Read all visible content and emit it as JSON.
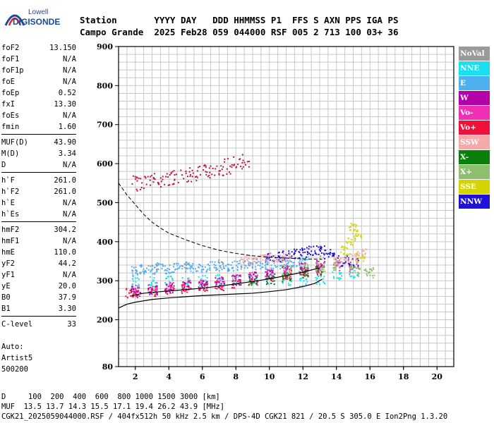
{
  "logo": {
    "line1": "Lowell",
    "line2": "DIGISONDE"
  },
  "header": {
    "row1": "Station       YYYY DAY   DDD HHMMSS P1  FFS S AXN PPS IGA PS",
    "row2": "Campo Grande  2025 Feb28 059 044000 RSF 005 2 713 100 03+ 36"
  },
  "params": {
    "group1": [
      {
        "label": "foF2",
        "value": "13.150"
      },
      {
        "label": "foF1",
        "value": "N/A"
      },
      {
        "label": "foF1p",
        "value": "N/A"
      },
      {
        "label": "foE",
        "value": "N/A"
      },
      {
        "label": "foEp",
        "value": "0.52"
      },
      {
        "label": "fxI",
        "value": "13.30"
      },
      {
        "label": "foEs",
        "value": "N/A"
      },
      {
        "label": "fmin",
        "value": "1.60"
      }
    ],
    "group2": [
      {
        "label": "MUF(D)",
        "value": "43.90"
      },
      {
        "label": "M(D)",
        "value": "3.34"
      },
      {
        "label": "D",
        "value": "N/A"
      }
    ],
    "group3": [
      {
        "label": "h`F",
        "value": "261.0"
      },
      {
        "label": "h`F2",
        "value": "261.0"
      },
      {
        "label": "h`E",
        "value": "N/A"
      },
      {
        "label": "h`Es",
        "value": "N/A"
      }
    ],
    "group4": [
      {
        "label": "hmF2",
        "value": "304.2"
      },
      {
        "label": "hmF1",
        "value": "N/A"
      },
      {
        "label": "hmE",
        "value": "110.0"
      },
      {
        "label": "yF2",
        "value": "44.2"
      },
      {
        "label": "yF1",
        "value": "N/A"
      },
      {
        "label": "yE",
        "value": "20.0"
      },
      {
        "label": "B0",
        "value": "37.9"
      },
      {
        "label": "B1",
        "value": "3.30"
      }
    ],
    "group5": [
      {
        "label": "C-level",
        "value": "33"
      }
    ]
  },
  "auto": {
    "line1": "Auto:",
    "line2": "Artist5",
    "line3": "500200"
  },
  "legend": [
    {
      "label": "NoVal",
      "color": "#9a9a9a"
    },
    {
      "label": "NNE",
      "color": "#19e0f0"
    },
    {
      "label": "E",
      "color": "#4fb0f0"
    },
    {
      "label": "W",
      "color": "#b400a8"
    },
    {
      "label": "Vo-",
      "color": "#f030b4"
    },
    {
      "label": "Vo+",
      "color": "#f0103c"
    },
    {
      "label": "SSW",
      "color": "#f4aaaa"
    },
    {
      "label": "X-",
      "color": "#0a800a"
    },
    {
      "label": "X+",
      "color": "#8cc06c"
    },
    {
      "label": "SSE",
      "color": "#d4d400"
    },
    {
      "label": "NNW",
      "color": "#2010d8"
    }
  ],
  "footer": {
    "line1": "D     100  200  400  600  800 1000 1500 3000 [km]",
    "line2": "MUF  13.5 13.7 14.3 15.5 17.1 19.4 26.2 43.9 [MHz]",
    "line3": "CGK21_2025059044000.RSF / 404fx512h 50 kHz 2.5 km / DPS-4D CGK21 821 / 20.5 S 305.0 E Ion2Png 1.3.20"
  },
  "chart_data": {
    "type": "scatter",
    "xlim": [
      1,
      21
    ],
    "ylim": [
      80,
      900
    ],
    "xticks": [
      2,
      4,
      6,
      8,
      10,
      12,
      14,
      16,
      18,
      20
    ],
    "yticks": [
      80,
      200,
      300,
      400,
      500,
      600,
      700,
      800,
      900
    ],
    "grid": true,
    "legend_placement": "right",
    "series": [
      {
        "name": "E",
        "color": "#4fb0f0",
        "x": [
          2.0,
          2.5,
          3.0,
          3.5,
          4.0,
          4.5,
          5.0,
          5.5,
          6.0,
          6.5,
          7.0,
          7.5,
          8.0,
          8.5,
          9.0,
          9.5,
          10.0,
          10.5,
          11.0,
          11.5,
          12.0
        ],
        "y": [
          328,
          330,
          332,
          334,
          333,
          335,
          336,
          335,
          337,
          338,
          338,
          339,
          340,
          341,
          342,
          343,
          344,
          345,
          346,
          348,
          350
        ]
      },
      {
        "name": "NNE",
        "color": "#19e0f0",
        "x": [
          2.0,
          3.0,
          4.0,
          5.0,
          6.0,
          7.0,
          8.0,
          9.0,
          10.0,
          11.0,
          12.0,
          13.0,
          14.0,
          15.0
        ],
        "y": [
          298,
          300,
          301,
          302,
          303,
          304,
          305,
          306,
          306,
          303,
          300,
          305,
          315,
          322
        ]
      },
      {
        "name": "Vo+",
        "color": "#f0103c",
        "x": [
          1.6,
          2.0,
          3.0,
          4.0,
          5.0,
          6.0,
          7.0,
          8.0,
          9.0,
          10.0,
          11.0,
          12.0,
          13.0
        ],
        "y": [
          270,
          272,
          275,
          278,
          282,
          286,
          290,
          296,
          304,
          310,
          316,
          322,
          330
        ]
      },
      {
        "name": "Vo-",
        "color": "#f030b4",
        "x": [
          2.0,
          3.0,
          4.0,
          5.0,
          6.0,
          7.0,
          8.0,
          9.0,
          10.0,
          11.0,
          12.0,
          13.0,
          14.0,
          15.0
        ],
        "y": [
          282,
          284,
          287,
          291,
          295,
          300,
          305,
          311,
          318,
          324,
          330,
          336,
          340,
          338
        ]
      },
      {
        "name": "W",
        "color": "#b400a8",
        "x": [
          2.0,
          3.0,
          4.0,
          5.0,
          6.0,
          7.0,
          8.0,
          9.0,
          10.0,
          11.0,
          12.0,
          13.0
        ],
        "y": [
          276,
          279,
          283,
          287,
          292,
          297,
          303,
          310,
          318,
          326,
          334,
          342
        ]
      },
      {
        "name": "NNW",
        "color": "#2010d8",
        "x": [
          10.0,
          10.5,
          11.0,
          11.5,
          12.0,
          12.5,
          13.0,
          13.5,
          14.0,
          14.5,
          15.0
        ],
        "y": [
          360,
          362,
          366,
          370,
          374,
          378,
          380,
          370,
          360,
          352,
          346
        ]
      },
      {
        "name": "SSW",
        "color": "#f4aaaa",
        "x": [
          8.5,
          9.0,
          9.5,
          10.0,
          10.5,
          11.0,
          14.0,
          14.5,
          15.0,
          15.5
        ],
        "y": [
          355,
          356,
          358,
          360,
          362,
          364,
          350,
          355,
          360,
          370
        ]
      },
      {
        "name": "SSE",
        "color": "#d4d400",
        "x": [
          14.5,
          14.8,
          15.0,
          15.2,
          15.4
        ],
        "y": [
          380,
          400,
          440,
          420,
          360
        ]
      },
      {
        "name": "X-",
        "color": "#0a800a",
        "x": [
          9.0,
          10.0,
          11.0,
          12.0,
          13.0
        ],
        "y": [
          300,
          305,
          312,
          320,
          328
        ]
      },
      {
        "name": "X+",
        "color": "#8cc06c",
        "x": [
          11.0,
          12.0,
          13.0,
          14.0,
          15.0,
          15.5,
          16.0
        ],
        "y": [
          330,
          334,
          336,
          338,
          330,
          325,
          322
        ]
      },
      {
        "name": "NoVal",
        "color": "#9a9a9a",
        "x": [
          2.0,
          3.0,
          5.0,
          7.0,
          9.0,
          11.0,
          13.0
        ],
        "y": [
          326,
          330,
          336,
          342,
          346,
          350,
          354
        ]
      }
    ],
    "upper_trace": {
      "color": "#c0143c",
      "x": [
        2.0,
        2.5,
        3.0,
        3.5,
        4.0,
        4.5,
        5.0,
        5.5,
        6.0,
        6.5,
        7.0,
        7.5,
        8.0,
        8.5
      ],
      "y": [
        550,
        555,
        560,
        562,
        565,
        568,
        572,
        575,
        580,
        585,
        590,
        595,
        600,
        605
      ]
    },
    "fitted_trace": {
      "x": [
        1.8,
        2.5,
        3.0,
        3.5,
        4.0,
        5.0,
        6.0,
        7.0,
        8.0,
        9.0,
        10.0,
        11.0,
        12.0,
        13.0
      ],
      "y": [
        262,
        268,
        270,
        272,
        274,
        277,
        281,
        286,
        292,
        298,
        305,
        313,
        322,
        333
      ]
    },
    "true_height_profile": {
      "x": [
        1.0,
        1.5,
        2.0,
        3.0,
        4.0,
        5.0,
        6.0,
        7.0,
        8.0,
        9.0,
        10.0,
        11.0,
        12.0,
        12.7,
        13.15
      ],
      "y": [
        230,
        240,
        245,
        252,
        256,
        259,
        262,
        264,
        266,
        268,
        272,
        277,
        285,
        293,
        304
      ]
    },
    "dashed_profile": {
      "x": [
        1.0,
        1.5,
        2.0,
        2.5,
        3.0,
        3.5,
        4.0,
        5.0,
        6.0,
        7.0,
        8.0,
        9.0,
        10.0,
        11.0,
        12.0,
        13.15
      ],
      "y": [
        550,
        520,
        495,
        470,
        450,
        435,
        422,
        405,
        390,
        378,
        370,
        364,
        360,
        358,
        356,
        355
      ]
    }
  }
}
